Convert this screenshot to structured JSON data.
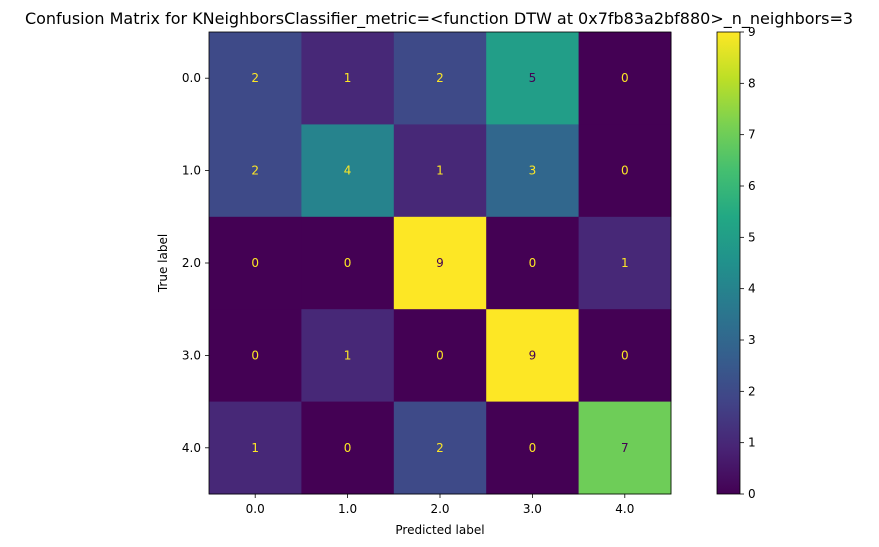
{
  "chart_data": {
    "type": "heatmap",
    "title": "Confusion Matrix for KNeighborsClassifier_metric=<function DTW at 0x7fb83a2bf880>_n_neighbors=3",
    "xlabel": "Predicted label",
    "ylabel": "True label",
    "x_categories": [
      "0.0",
      "1.0",
      "2.0",
      "3.0",
      "4.0"
    ],
    "y_categories": [
      "0.0",
      "1.0",
      "2.0",
      "3.0",
      "4.0"
    ],
    "matrix": [
      [
        2,
        1,
        2,
        5,
        0
      ],
      [
        2,
        4,
        1,
        3,
        0
      ],
      [
        0,
        0,
        9,
        0,
        1
      ],
      [
        0,
        1,
        0,
        9,
        0
      ],
      [
        1,
        0,
        2,
        0,
        7
      ]
    ],
    "colormap": "viridis",
    "colorbar": {
      "range": [
        0,
        9
      ],
      "ticks": [
        "0",
        "1",
        "2",
        "3",
        "4",
        "5",
        "6",
        "7",
        "8",
        "9"
      ]
    },
    "text_color_light": "#fde725",
    "text_color_dark": "#440154"
  }
}
